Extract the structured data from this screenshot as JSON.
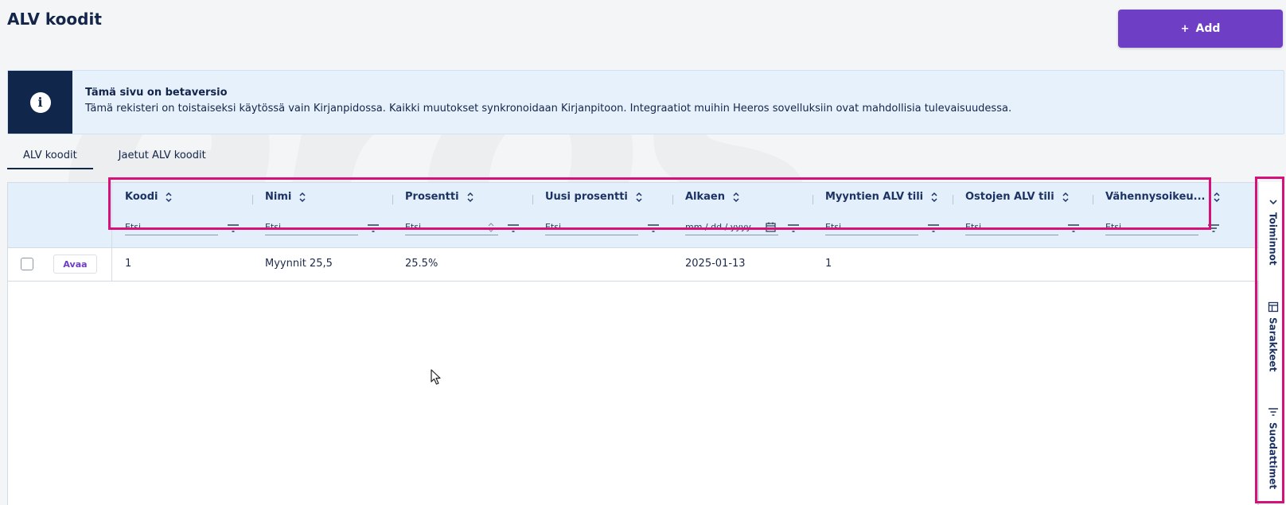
{
  "page": {
    "title": "ALV koodit",
    "add_label": "Add"
  },
  "banner": {
    "title": "Tämä sivu on betaversio",
    "description": "Tämä rekisteri on toistaiseksi käytössä vain Kirjanpidossa. Kaikki muutokset synkronoidaan Kirjanpitoon. Integraatiot muihin Heeros sovelluksiin ovat mahdollisia tulevaisuudessa."
  },
  "tabs": [
    {
      "label": "ALV koodit",
      "active": true
    },
    {
      "label": "Jaetut ALV koodit",
      "active": false
    }
  ],
  "grid": {
    "columns": [
      {
        "label": "Koodi",
        "filter_placeholder": "Etsi..."
      },
      {
        "label": "Nimi",
        "filter_placeholder": "Etsi..."
      },
      {
        "label": "Prosentti",
        "filter_placeholder": "Etsi..."
      },
      {
        "label": "Uusi prosentti",
        "filter_placeholder": "Etsi..."
      },
      {
        "label": "Alkaen",
        "filter_placeholder": "mm / dd / yyyy"
      },
      {
        "label": "Myyntien ALV tili",
        "filter_placeholder": "Etsi..."
      },
      {
        "label": "Ostojen ALV tili",
        "filter_placeholder": "Etsi..."
      },
      {
        "label": "Vähennysoikeu...",
        "filter_placeholder": "Etsi..."
      }
    ],
    "rows": [
      {
        "open_label": "Avaa",
        "cells": [
          "1",
          "Myynnit 25,5",
          "25.5%",
          "",
          "2025-01-13",
          "1",
          "",
          ""
        ]
      }
    ]
  },
  "side_panel": {
    "items": [
      {
        "label": "Toiminnot",
        "icon": "chevron-down-icon"
      },
      {
        "label": "Sarakkeet",
        "icon": "columns-icon"
      },
      {
        "label": "Suodattimet",
        "icon": "filter-icon"
      }
    ]
  },
  "colors": {
    "primary": "#6e3ec5",
    "navy": "#10264a",
    "banner_bg": "#e6f1fb",
    "header_bg": "#e3effb",
    "highlight": "#d4127a"
  }
}
